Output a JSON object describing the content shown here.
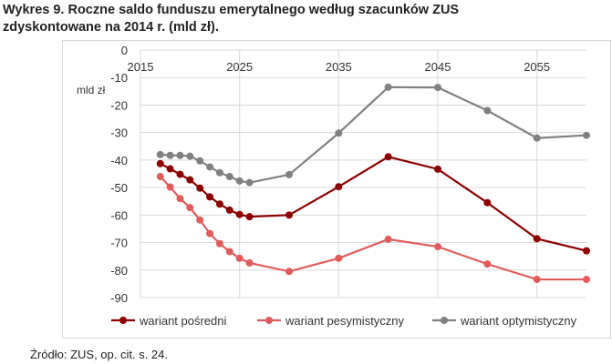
{
  "title_line1": "Wykres 9. Roczne saldo funduszu emerytalnego według szacunków ZUS",
  "title_line2": "zdyskontowane na 2014 r. (mld zł).",
  "source": "Źródło: ZUS, op. cit. s. 24.",
  "chart_data": {
    "type": "line",
    "title": "Roczne saldo funduszu emerytalnego według szacunków ZUS zdyskontowane na 2014 r. (mld zł)",
    "ylabel": "mld zł",
    "xlabel": "",
    "xlim": [
      2015,
      2060
    ],
    "ylim": [
      -90,
      0
    ],
    "xticks": [
      "2015",
      "2025",
      "2035",
      "2045",
      "2055"
    ],
    "yticks": [
      "0",
      "-10",
      "-20",
      "-30",
      "-40",
      "-50",
      "-60",
      "-70",
      "-80",
      "-90"
    ],
    "grid": true,
    "legend": "bottom",
    "x": [
      2017,
      2018,
      2019,
      2020,
      2021,
      2022,
      2023,
      2024,
      2025,
      2026,
      2030,
      2035,
      2040,
      2045,
      2050,
      2055,
      2060
    ],
    "series": [
      {
        "name": "wariant pośredni",
        "color": "#8b0000",
        "values": [
          -41.3,
          -43.2,
          -45.2,
          -47.2,
          -50.2,
          -53.4,
          -56,
          -58.2,
          -59.8,
          -60.6,
          -60,
          -49.7,
          -38.8,
          -43.3,
          -55.5,
          -68.6,
          -73
        ]
      },
      {
        "name": "wariant pesymistyczny",
        "color": "#e05c5c",
        "values": [
          -46,
          -49.8,
          -54,
          -57.3,
          -61.8,
          -66.7,
          -70.4,
          -73.3,
          -75.7,
          -77.4,
          -80.5,
          -75.7,
          -68.8,
          -71.5,
          -77.8,
          -83.4,
          -83.4
        ]
      },
      {
        "name": "wariant optymistyczny",
        "color": "#808080",
        "values": [
          -38,
          -38.3,
          -38.3,
          -38.6,
          -40.3,
          -42.5,
          -44.6,
          -46,
          -47.6,
          -48.2,
          -45.3,
          -30.2,
          -13.5,
          -13.6,
          -22,
          -32,
          -31
        ]
      }
    ]
  }
}
